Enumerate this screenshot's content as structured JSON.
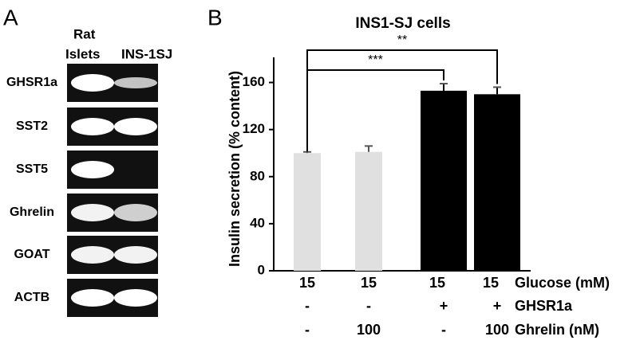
{
  "panel_a": {
    "label": "A",
    "header_left": [
      "Rat",
      "Islets"
    ],
    "header_right": "INS-1SJ",
    "genes": [
      "GHSR1a",
      "SST2",
      "SST5",
      "Ghrelin",
      "GOAT",
      "ACTB"
    ]
  },
  "chart_data": {
    "type": "bar",
    "panel_label": "B",
    "title": "INS1-SJ cells",
    "ylabel": "Insulin secretion (% content)",
    "series": [
      {
        "values": [
          100,
          101,
          153,
          150
        ],
        "errors": [
          1,
          5,
          6,
          6
        ],
        "colors": [
          "#e0e0e0",
          "#e0e0e0",
          "#000000",
          "#000000"
        ]
      }
    ],
    "ylim": [
      0,
      180
    ],
    "yticks": [
      0,
      40,
      80,
      120,
      160
    ],
    "annotations": [
      {
        "text": "***",
        "from": 0,
        "to": 2
      },
      {
        "text": "**",
        "from": 0,
        "to": 3
      }
    ],
    "conditions": [
      {
        "name": "Glucose (mM)",
        "values": [
          15,
          15,
          15,
          15
        ]
      },
      {
        "name": "GHSR1a",
        "values": [
          "-",
          "-",
          "+",
          "+"
        ]
      },
      {
        "name": "Ghrelin (nM)",
        "values": [
          "-",
          100,
          "-",
          100
        ]
      }
    ]
  }
}
